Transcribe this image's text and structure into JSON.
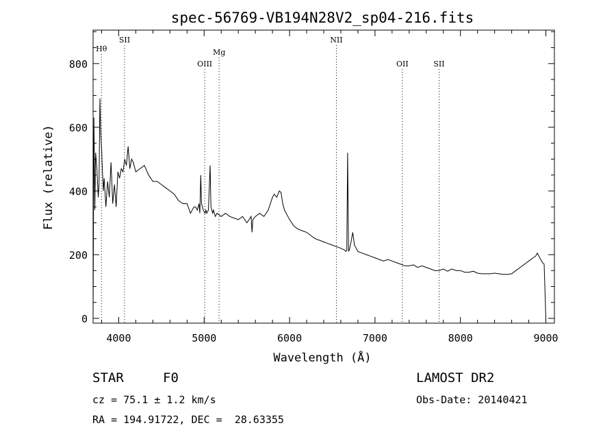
{
  "chart_data": {
    "type": "line",
    "title": "spec-56769-VB194N28V2_sp04-216.fits",
    "xlabel": "Wavelength (Å)",
    "ylabel": "Flux (relative)",
    "xlim": [
      3700,
      9100
    ],
    "ylim": [
      -15,
      905
    ],
    "xticks": [
      4000,
      5000,
      6000,
      7000,
      8000,
      9000
    ],
    "yticks": [
      0,
      200,
      400,
      600,
      800
    ],
    "grid": false,
    "line_color": "#000000",
    "spectral_lines": [
      {
        "label": "Hθ",
        "wavelength": 3798
      },
      {
        "label": "SII",
        "wavelength": 4068
      },
      {
        "label": "OIII",
        "wavelength": 5007
      },
      {
        "label": "Mg",
        "wavelength": 5175
      },
      {
        "label": "NII",
        "wavelength": 6548
      },
      {
        "label": "OII",
        "wavelength": 7320
      },
      {
        "label": "SII",
        "wavelength": 7750
      }
    ],
    "series": [
      {
        "x": [
          3700,
          3710,
          3720,
          3730,
          3745,
          3760,
          3770,
          3780,
          3790,
          3800,
          3810,
          3820,
          3830,
          3850,
          3870,
          3890,
          3910,
          3930,
          3950,
          3970,
          3990,
          4000,
          4010,
          4030,
          4050,
          4070,
          4090,
          4110,
          4130,
          4150,
          4170,
          4200,
          4250,
          4300,
          4350,
          4400,
          4450,
          4500,
          4550,
          4600,
          4650,
          4700,
          4750,
          4800,
          4840,
          4860,
          4880,
          4900,
          4920,
          4940,
          4950,
          4960,
          4970,
          4990,
          5010,
          5020,
          5030,
          5050,
          5070,
          5080,
          5090,
          5100,
          5110,
          5130,
          5150,
          5200,
          5250,
          5300,
          5350,
          5400,
          5450,
          5500,
          5550,
          5560,
          5570,
          5600,
          5650,
          5700,
          5750,
          5800,
          5820,
          5850,
          5880,
          5900,
          5920,
          5940,
          5960,
          5980,
          6000,
          6050,
          6100,
          6150,
          6200,
          6250,
          6300,
          6350,
          6400,
          6450,
          6500,
          6550,
          6600,
          6640,
          6660,
          6670,
          6680,
          6690,
          6700,
          6720,
          6740,
          6760,
          6780,
          6800,
          6850,
          6900,
          6950,
          7000,
          7050,
          7100,
          7150,
          7200,
          7250,
          7300,
          7350,
          7400,
          7450,
          7500,
          7550,
          7600,
          7650,
          7700,
          7750,
          7800,
          7850,
          7900,
          7950,
          8000,
          8050,
          8100,
          8150,
          8200,
          8250,
          8300,
          8350,
          8400,
          8450,
          8500,
          8550,
          8600,
          8650,
          8700,
          8750,
          8800,
          8850,
          8880,
          8900,
          8920,
          8940,
          8960,
          8980,
          9000
        ],
        "y": [
          0,
          630,
          340,
          520,
          470,
          380,
          420,
          690,
          580,
          530,
          460,
          400,
          440,
          350,
          430,
          380,
          490,
          360,
          420,
          350,
          460,
          450,
          440,
          470,
          460,
          500,
          480,
          540,
          470,
          500,
          490,
          460,
          470,
          480,
          450,
          430,
          430,
          420,
          410,
          400,
          390,
          370,
          360,
          360,
          330,
          340,
          350,
          350,
          340,
          360,
          330,
          450,
          360,
          340,
          330,
          340,
          330,
          340,
          480,
          350,
          340,
          330,
          340,
          320,
          330,
          320,
          330,
          320,
          315,
          310,
          320,
          300,
          320,
          270,
          310,
          320,
          330,
          320,
          340,
          380,
          390,
          380,
          400,
          395,
          360,
          340,
          330,
          320,
          310,
          290,
          280,
          275,
          270,
          260,
          250,
          245,
          240,
          235,
          230,
          225,
          220,
          215,
          210,
          215,
          520,
          210,
          215,
          240,
          270,
          230,
          220,
          210,
          205,
          200,
          195,
          190,
          185,
          180,
          185,
          180,
          175,
          170,
          165,
          165,
          168,
          160,
          165,
          160,
          155,
          150,
          150,
          155,
          148,
          155,
          150,
          150,
          145,
          145,
          148,
          142,
          140,
          140,
          140,
          142,
          140,
          138,
          138,
          140,
          150,
          160,
          170,
          180,
          190,
          195,
          205,
          195,
          185,
          175,
          170,
          0
        ]
      }
    ]
  },
  "info": {
    "object_class": "STAR",
    "subclass": "F0",
    "survey": "LAMOST DR2",
    "cz": "cz = 75.1 ± 1.2 km/s",
    "obs_date": "Obs-Date: 20140421",
    "coords": "RA = 194.91722, DEC =  28.63355"
  }
}
